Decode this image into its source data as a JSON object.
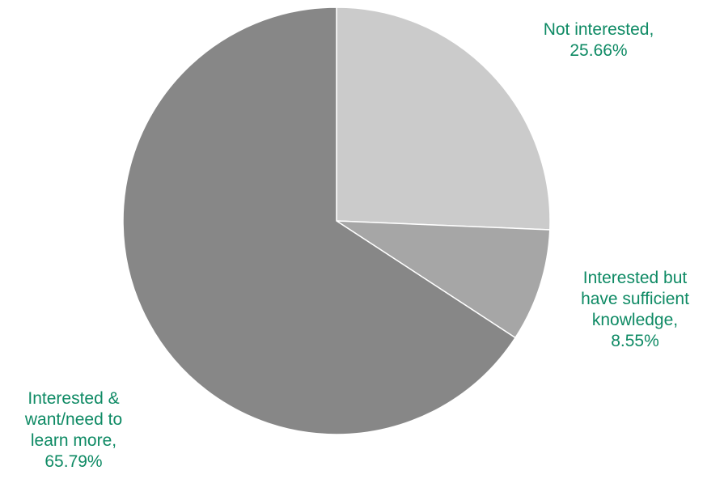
{
  "chart_data": {
    "type": "pie",
    "start_angle_deg": 0,
    "direction": "clockwise",
    "slices": [
      {
        "label_lines": [
          "Not interested,",
          "25.66%"
        ],
        "value": 25.66,
        "color": "#cbcbcb"
      },
      {
        "label_lines": [
          "Interested but",
          "have sufficient",
          "knowledge,",
          "8.55%"
        ],
        "value": 8.55,
        "color": "#a6a6a6"
      },
      {
        "label_lines": [
          "Interested &",
          "want/need to",
          "learn more,",
          "65.79%"
        ],
        "value": 65.79,
        "color": "#878787"
      }
    ],
    "label_color": "#0e8a64",
    "legend": "none"
  }
}
